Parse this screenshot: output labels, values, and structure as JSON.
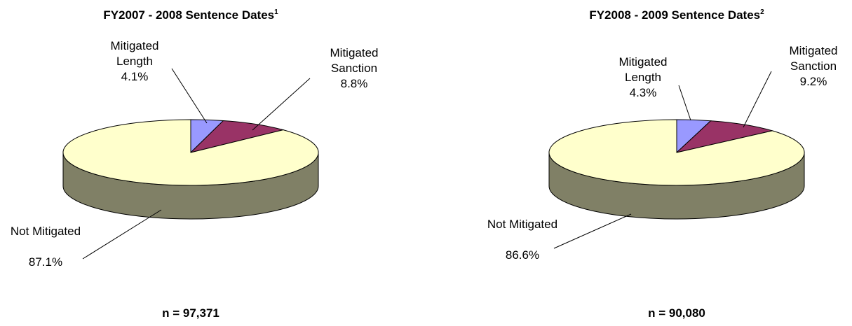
{
  "chart_data": [
    {
      "type": "pie",
      "title": "FY2007 - 2008 Sentence Dates",
      "title_note": "1",
      "categories": [
        "Mitigated Length",
        "Mitigated Sanction",
        "Not Mitigated"
      ],
      "values": [
        4.1,
        8.8,
        87.1
      ],
      "value_labels": [
        "4.1%",
        "8.8%",
        "87.1%"
      ],
      "colors": [
        "#9999ff",
        "#993366",
        "#ffffcc"
      ],
      "note": "n = 97,371"
    },
    {
      "type": "pie",
      "title": "FY2008 - 2009 Sentence Dates",
      "title_note": "2",
      "categories": [
        "Mitigated Length",
        "Mitigated Sanction",
        "Not Mitigated"
      ],
      "values": [
        4.3,
        9.2,
        86.6
      ],
      "value_labels": [
        "4.3%",
        "9.2%",
        "86.6%"
      ],
      "colors": [
        "#9999ff",
        "#993366",
        "#ffffcc"
      ],
      "note": "n = 90,080"
    }
  ]
}
